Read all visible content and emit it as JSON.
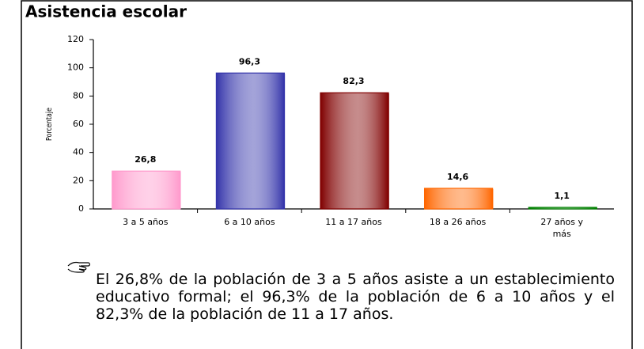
{
  "chart_data": {
    "type": "bar",
    "title": "Asistencia escolar",
    "y_label": "Porcentaje",
    "categories": [
      "3 a 5 años",
      "6 a 10 años",
      "11 a 17 años",
      "18 a 26 años",
      "27 años y más"
    ],
    "values": [
      26.8,
      96.3,
      82.3,
      14.6,
      1.1
    ],
    "value_labels": [
      "26,8",
      "96,3",
      "82,3",
      "14,6",
      "1,1"
    ],
    "colors": [
      "#ff99cc",
      "#3333aa",
      "#800000",
      "#ff6600",
      "#008000"
    ],
    "ylim": [
      0,
      120
    ],
    "yticks": [
      0,
      20,
      40,
      60,
      80,
      100,
      120
    ],
    "grid": false
  },
  "note": "El 26,8% de la población de 3 a 5 años asiste a un establecimiento educativo formal; el 96,3% de la población de 6 a 10 años y el 82,3% de la población de 11 a 17 años."
}
